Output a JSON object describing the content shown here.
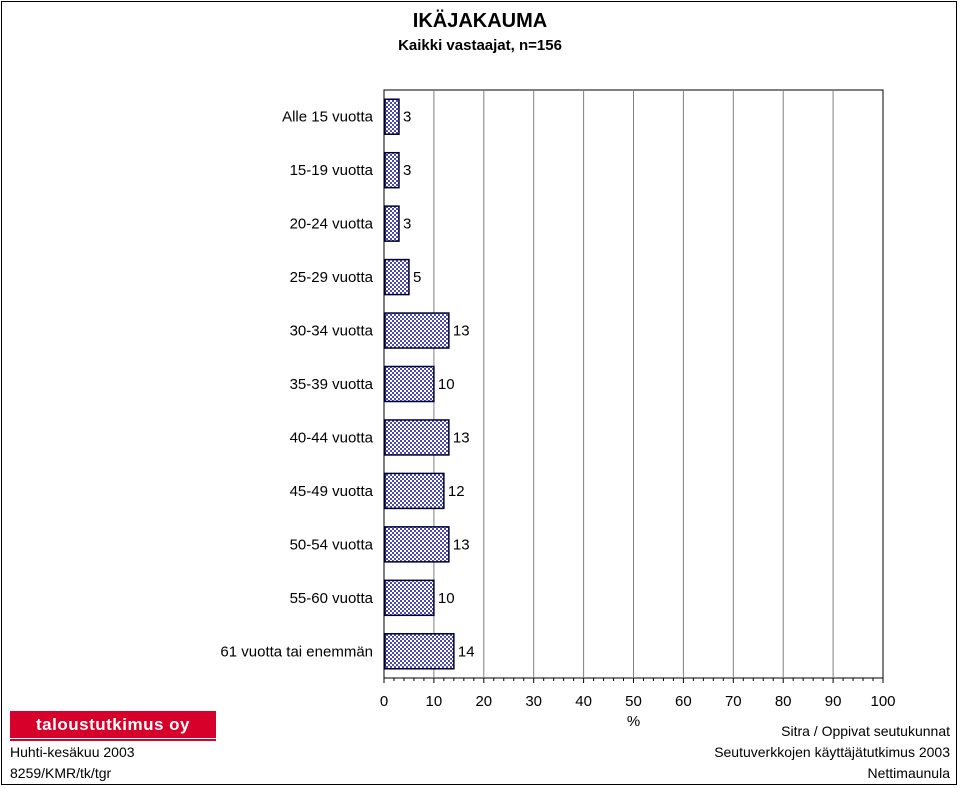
{
  "header": {
    "title": "IKÄJAKAUMA",
    "subtitle": "Kaikki vastaajat, n=156"
  },
  "footer": {
    "logo_text": "taloustutkimus oy",
    "left_line1": "Huhti-kesäkuu 2003",
    "left_line2": "8259/KMR/tk/tgr",
    "right_line1": "Sitra / Oppivat seutukunnat",
    "right_line2": "Seutuverkkojen käyttäjätutkimus 2003",
    "right_line3": "Nettimaunula"
  },
  "colors": {
    "bar_fill": "#9a9ad6",
    "bar_stroke": "#000033",
    "grid": "#808080",
    "logo": "#d6002a"
  },
  "chart_data": {
    "type": "bar",
    "orientation": "horizontal",
    "title": "IKÄJAKAUMA",
    "subtitle": "Kaikki vastaajat, n=156",
    "xlabel": "%",
    "ylabel": "",
    "xlim": [
      0,
      100
    ],
    "xticks": [
      0,
      10,
      20,
      30,
      40,
      50,
      60,
      70,
      80,
      90,
      100
    ],
    "grid": true,
    "categories": [
      "Alle 15 vuotta",
      "15-19 vuotta",
      "20-24 vuotta",
      "25-29 vuotta",
      "30-34 vuotta",
      "35-39 vuotta",
      "40-44 vuotta",
      "45-49 vuotta",
      "50-54 vuotta",
      "55-60 vuotta",
      "61 vuotta tai enemmän"
    ],
    "values": [
      3,
      3,
      3,
      5,
      13,
      10,
      13,
      12,
      13,
      10,
      14
    ]
  }
}
